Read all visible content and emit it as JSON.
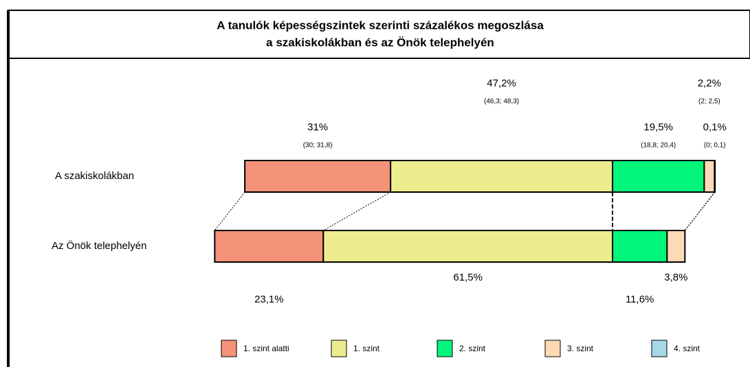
{
  "chart_data": {
    "type": "diverging-stacked-bar",
    "title": [
      "A tanulók képességszintek szerinti százalékos megoszlása",
      "a szakiskolákban és az Önök telephelyén"
    ],
    "categories": [
      "A szakiskolákban",
      "Az Önök telephelyén"
    ],
    "pivot_after_series": 1,
    "series": [
      {
        "name": "1. szint alatti",
        "color": "#f4937a",
        "values": [
          31,
          23.1
        ],
        "value_labels": [
          "31%",
          "23,1%"
        ],
        "ci_labels": [
          "(30; 31,8)",
          null
        ]
      },
      {
        "name": "1. szint",
        "color": "#eded8f",
        "values": [
          47.2,
          61.5
        ],
        "value_labels": [
          "47,2%",
          "61,5%"
        ],
        "ci_labels": [
          "(46,3; 48,3)",
          null
        ]
      },
      {
        "name": "2. szint",
        "color": "#00f57a",
        "values": [
          19.5,
          11.6
        ],
        "value_labels": [
          "19,5%",
          "11,6%"
        ],
        "ci_labels": [
          "(18,8; 20,4)",
          null
        ]
      },
      {
        "name": "3. szint",
        "color": "#fdd9b5",
        "values": [
          2.2,
          3.8
        ],
        "value_labels": [
          "2,2%",
          "3,8%"
        ],
        "ci_labels": [
          "(2; 2,5)",
          null
        ]
      },
      {
        "name": "4. szint",
        "color": "#a8d8e8",
        "values": [
          0.1,
          0
        ],
        "value_labels": [
          "0,1%",
          null
        ],
        "ci_labels": [
          "(0; 0,1)",
          null
        ]
      }
    ]
  }
}
